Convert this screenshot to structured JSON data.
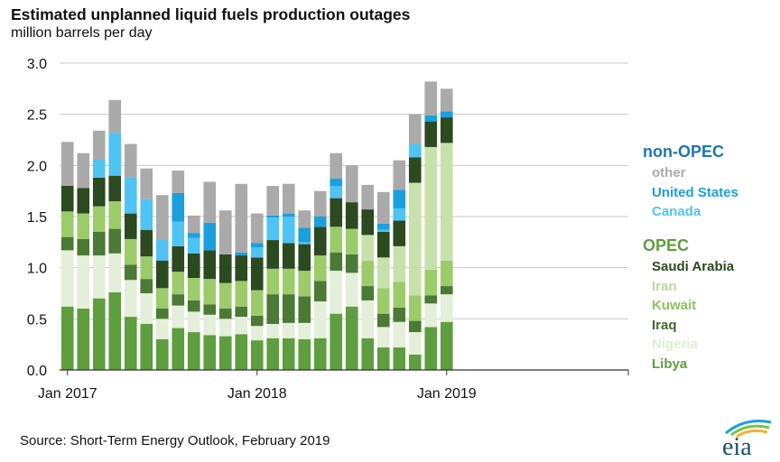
{
  "chart_data": {
    "type": "bar",
    "stacked": true,
    "title": "Estimated unplanned liquid fuels production outages",
    "ylabel": "million barrels per day",
    "ylim": [
      0,
      3.0
    ],
    "yticks": [
      "0.0",
      "0.5",
      "1.0",
      "1.5",
      "2.0",
      "2.5",
      "3.0"
    ],
    "grid": true,
    "x_tick_labels": [
      "Jan 2017",
      "Jan 2018",
      "Jan 2019"
    ],
    "months": [
      "2017-01",
      "2017-02",
      "2017-03",
      "2017-04",
      "2017-05",
      "2017-06",
      "2017-07",
      "2017-08",
      "2017-09",
      "2017-10",
      "2017-11",
      "2017-12",
      "2018-01",
      "2018-02",
      "2018-03",
      "2018-04",
      "2018-05",
      "2018-06",
      "2018-07",
      "2018-08",
      "2018-09",
      "2018-10",
      "2018-11",
      "2018-12",
      "2019-01",
      "2019-02"
    ],
    "series": [
      {
        "name": "Libya",
        "color": "#5e9e3e",
        "values": [
          0.62,
          0.6,
          0.7,
          0.76,
          0.52,
          0.45,
          0.3,
          0.41,
          0.37,
          0.34,
          0.33,
          0.35,
          0.29,
          0.31,
          0.31,
          0.3,
          0.31,
          0.55,
          0.62,
          0.31,
          0.22,
          0.22,
          0.15,
          0.42,
          0.47,
          0
        ]
      },
      {
        "name": "Nigeria",
        "color": "#e3efd8",
        "values": [
          0.55,
          0.52,
          0.42,
          0.38,
          0.36,
          0.3,
          0.2,
          0.22,
          0.2,
          0.2,
          0.17,
          0.17,
          0.14,
          0.14,
          0.15,
          0.16,
          0.36,
          0.42,
          0.33,
          0.37,
          0.2,
          0.25,
          0.22,
          0.23,
          0.27,
          0
        ]
      },
      {
        "name": "Iraq",
        "color": "#4a7a33",
        "values": [
          0.13,
          0.16,
          0.23,
          0.24,
          0.15,
          0.14,
          0.1,
          0.11,
          0.11,
          0.1,
          0.1,
          0.1,
          0.1,
          0.29,
          0.28,
          0.26,
          0.2,
          0.18,
          0.18,
          0.14,
          0.13,
          0.14,
          0.11,
          0.08,
          0.08,
          0
        ]
      },
      {
        "name": "Kuwait",
        "color": "#9ccc6a",
        "values": [
          0.25,
          0.25,
          0.25,
          0.27,
          0.25,
          0.22,
          0.2,
          0.22,
          0.22,
          0.25,
          0.25,
          0.25,
          0.25,
          0.25,
          0.25,
          0.25,
          0.25,
          0.25,
          0.25,
          0.25,
          0.25,
          0.25,
          0.25,
          0.25,
          0.25,
          0
        ]
      },
      {
        "name": "Iran",
        "color": "#c6e2aa",
        "values": [
          0,
          0,
          0,
          0,
          0,
          0,
          0,
          0,
          0,
          0,
          0,
          0,
          0,
          0,
          0,
          0,
          0,
          0,
          0,
          0.25,
          0.3,
          0.35,
          1.1,
          1.2,
          1.15,
          0
        ]
      },
      {
        "name": "Saudi Arabia",
        "color": "#2b4a1f",
        "values": [
          0.25,
          0.25,
          0.28,
          0.25,
          0.25,
          0.26,
          0.27,
          0.25,
          0.24,
          0.28,
          0.28,
          0.25,
          0.32,
          0.28,
          0.25,
          0.26,
          0.28,
          0.28,
          0.26,
          0.25,
          0.25,
          0.25,
          0.25,
          0.25,
          0.25,
          0
        ]
      },
      {
        "name": "Canada",
        "color": "#4fc3f4",
        "values": [
          0,
          0,
          0.18,
          0.42,
          0.35,
          0.3,
          0.2,
          0.24,
          0.15,
          0,
          0,
          0,
          0.1,
          0.22,
          0.26,
          0.02,
          0,
          0.12,
          0,
          0,
          0.02,
          0.12,
          0.13,
          0,
          0,
          0
        ]
      },
      {
        "name": "United States",
        "color": "#1aa0dc",
        "values": [
          0,
          0,
          0,
          0,
          0,
          0,
          0,
          0.28,
          0.05,
          0.27,
          0,
          0.03,
          0.04,
          0.02,
          0.03,
          0.14,
          0.1,
          0.07,
          0,
          0,
          0.06,
          0.18,
          0,
          0.06,
          0.06,
          0
        ]
      },
      {
        "name": "other",
        "color": "#aaaaaa",
        "values": [
          0.43,
          0.34,
          0.28,
          0.32,
          0.33,
          0.3,
          0.44,
          0.22,
          0.17,
          0.4,
          0.43,
          0.67,
          0.29,
          0.29,
          0.29,
          0.17,
          0.25,
          0.25,
          0.36,
          0.24,
          0.31,
          0.29,
          0.29,
          0.33,
          0.22,
          0
        ]
      }
    ],
    "legend": {
      "placement": "right",
      "groups": [
        {
          "label": "non-OPEC",
          "color": "#1a79a8",
          "items": [
            {
              "label": "other",
              "color": "#aaaaaa"
            },
            {
              "label": "United States",
              "color": "#1aa0dc"
            },
            {
              "label": "Canada",
              "color": "#4fc3f4"
            }
          ]
        },
        {
          "label": "OPEC",
          "color": "#5e9e3e",
          "items": [
            {
              "label": "Saudi Arabia",
              "color": "#2b4a1f"
            },
            {
              "label": "Iran",
              "color": "#b7d99a"
            },
            {
              "label": "Kuwait",
              "color": "#8cc45a"
            },
            {
              "label": "Iraq",
              "color": "#3e6b2a"
            },
            {
              "label": "Nigeria",
              "color": "#dfeed2"
            },
            {
              "label": "Libya",
              "color": "#5e9e3e"
            }
          ]
        }
      ]
    }
  },
  "source": "Source: Short-Term Energy Outlook, February 2019",
  "logo_text": "eia"
}
